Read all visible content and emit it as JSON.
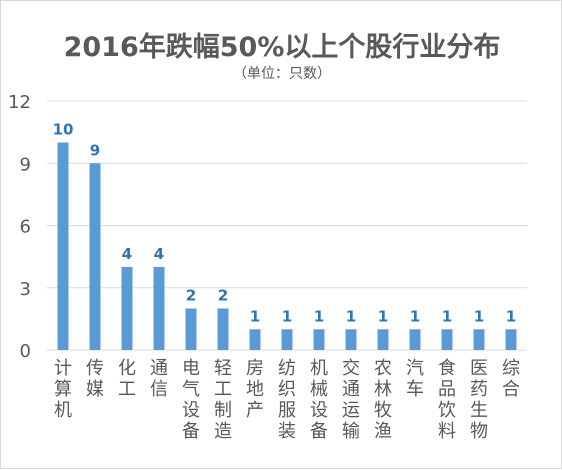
{
  "chart_data": {
    "type": "bar",
    "title": "2016年跌幅50%以上个股行业分布",
    "subtitle": "（单位：只数）",
    "categories": [
      "计算机",
      "传媒",
      "化工",
      "通信",
      "电气设备",
      "轻工制造",
      "房地产",
      "纺织服装",
      "机械设备",
      "交通运输",
      "农林牧渔",
      "汽车",
      "食品饮料",
      "医药生物",
      "综合"
    ],
    "values": [
      10,
      9,
      4,
      4,
      2,
      2,
      1,
      1,
      1,
      1,
      1,
      1,
      1,
      1,
      1
    ],
    "data_labels": [
      "10",
      "9",
      "4",
      "4",
      "2",
      "2",
      "1",
      "1",
      "1",
      "1",
      "1",
      "1",
      "1",
      "1",
      "1"
    ],
    "ylim": [
      0,
      12
    ],
    "yticks": [
      "0",
      "3",
      "6",
      "9",
      "12"
    ],
    "xlabel": "",
    "ylabel": "",
    "grid": true,
    "legend": "none",
    "colors": {
      "bar": "#5b9bd5",
      "label": "#2e75b6",
      "grid": "#d9d9d9",
      "text": "#595959"
    }
  }
}
